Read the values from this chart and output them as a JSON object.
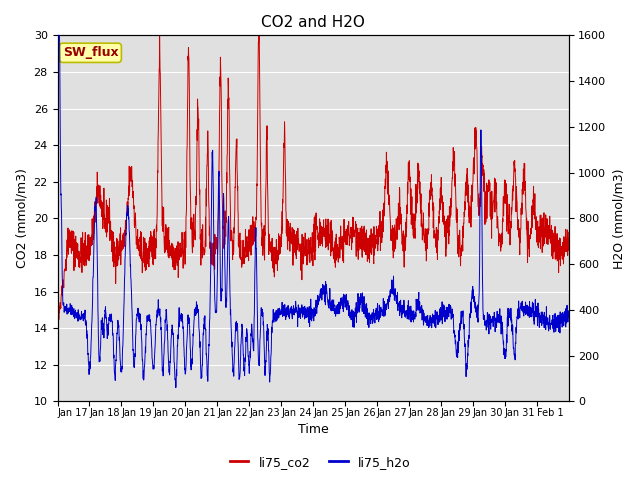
{
  "title": "CO2 and H2O",
  "xlabel": "Time",
  "ylabel_left": "CO2 (mmol/m3)",
  "ylabel_right": "H2O (mmol/m3)",
  "ylim_left": [
    10,
    30
  ],
  "ylim_right": [
    0,
    1600
  ],
  "yticks_left": [
    10,
    12,
    14,
    16,
    18,
    20,
    22,
    24,
    26,
    28,
    30
  ],
  "yticks_right": [
    0,
    200,
    400,
    600,
    800,
    1000,
    1200,
    1400,
    1600
  ],
  "color_co2": "#cc0000",
  "color_h2o": "#0000cc",
  "bg_color": "#e0e0e0",
  "annotation_text": "SW_flux",
  "annotation_bg": "#ffffaa",
  "annotation_border": "#bbbb00",
  "legend_co2": "li75_co2",
  "legend_h2o": "li75_h2o",
  "tick_labels": [
    "Jan 17",
    "Jan 18",
    "Jan 19",
    "Jan 20",
    "Jan 21",
    "Jan 22",
    "Jan 23",
    "Jan 24",
    "Jan 25",
    "Jan 26",
    "Jan 27",
    "Jan 28",
    "Jan 29",
    "Jan 30",
    "Jan 31",
    "Feb 1"
  ]
}
